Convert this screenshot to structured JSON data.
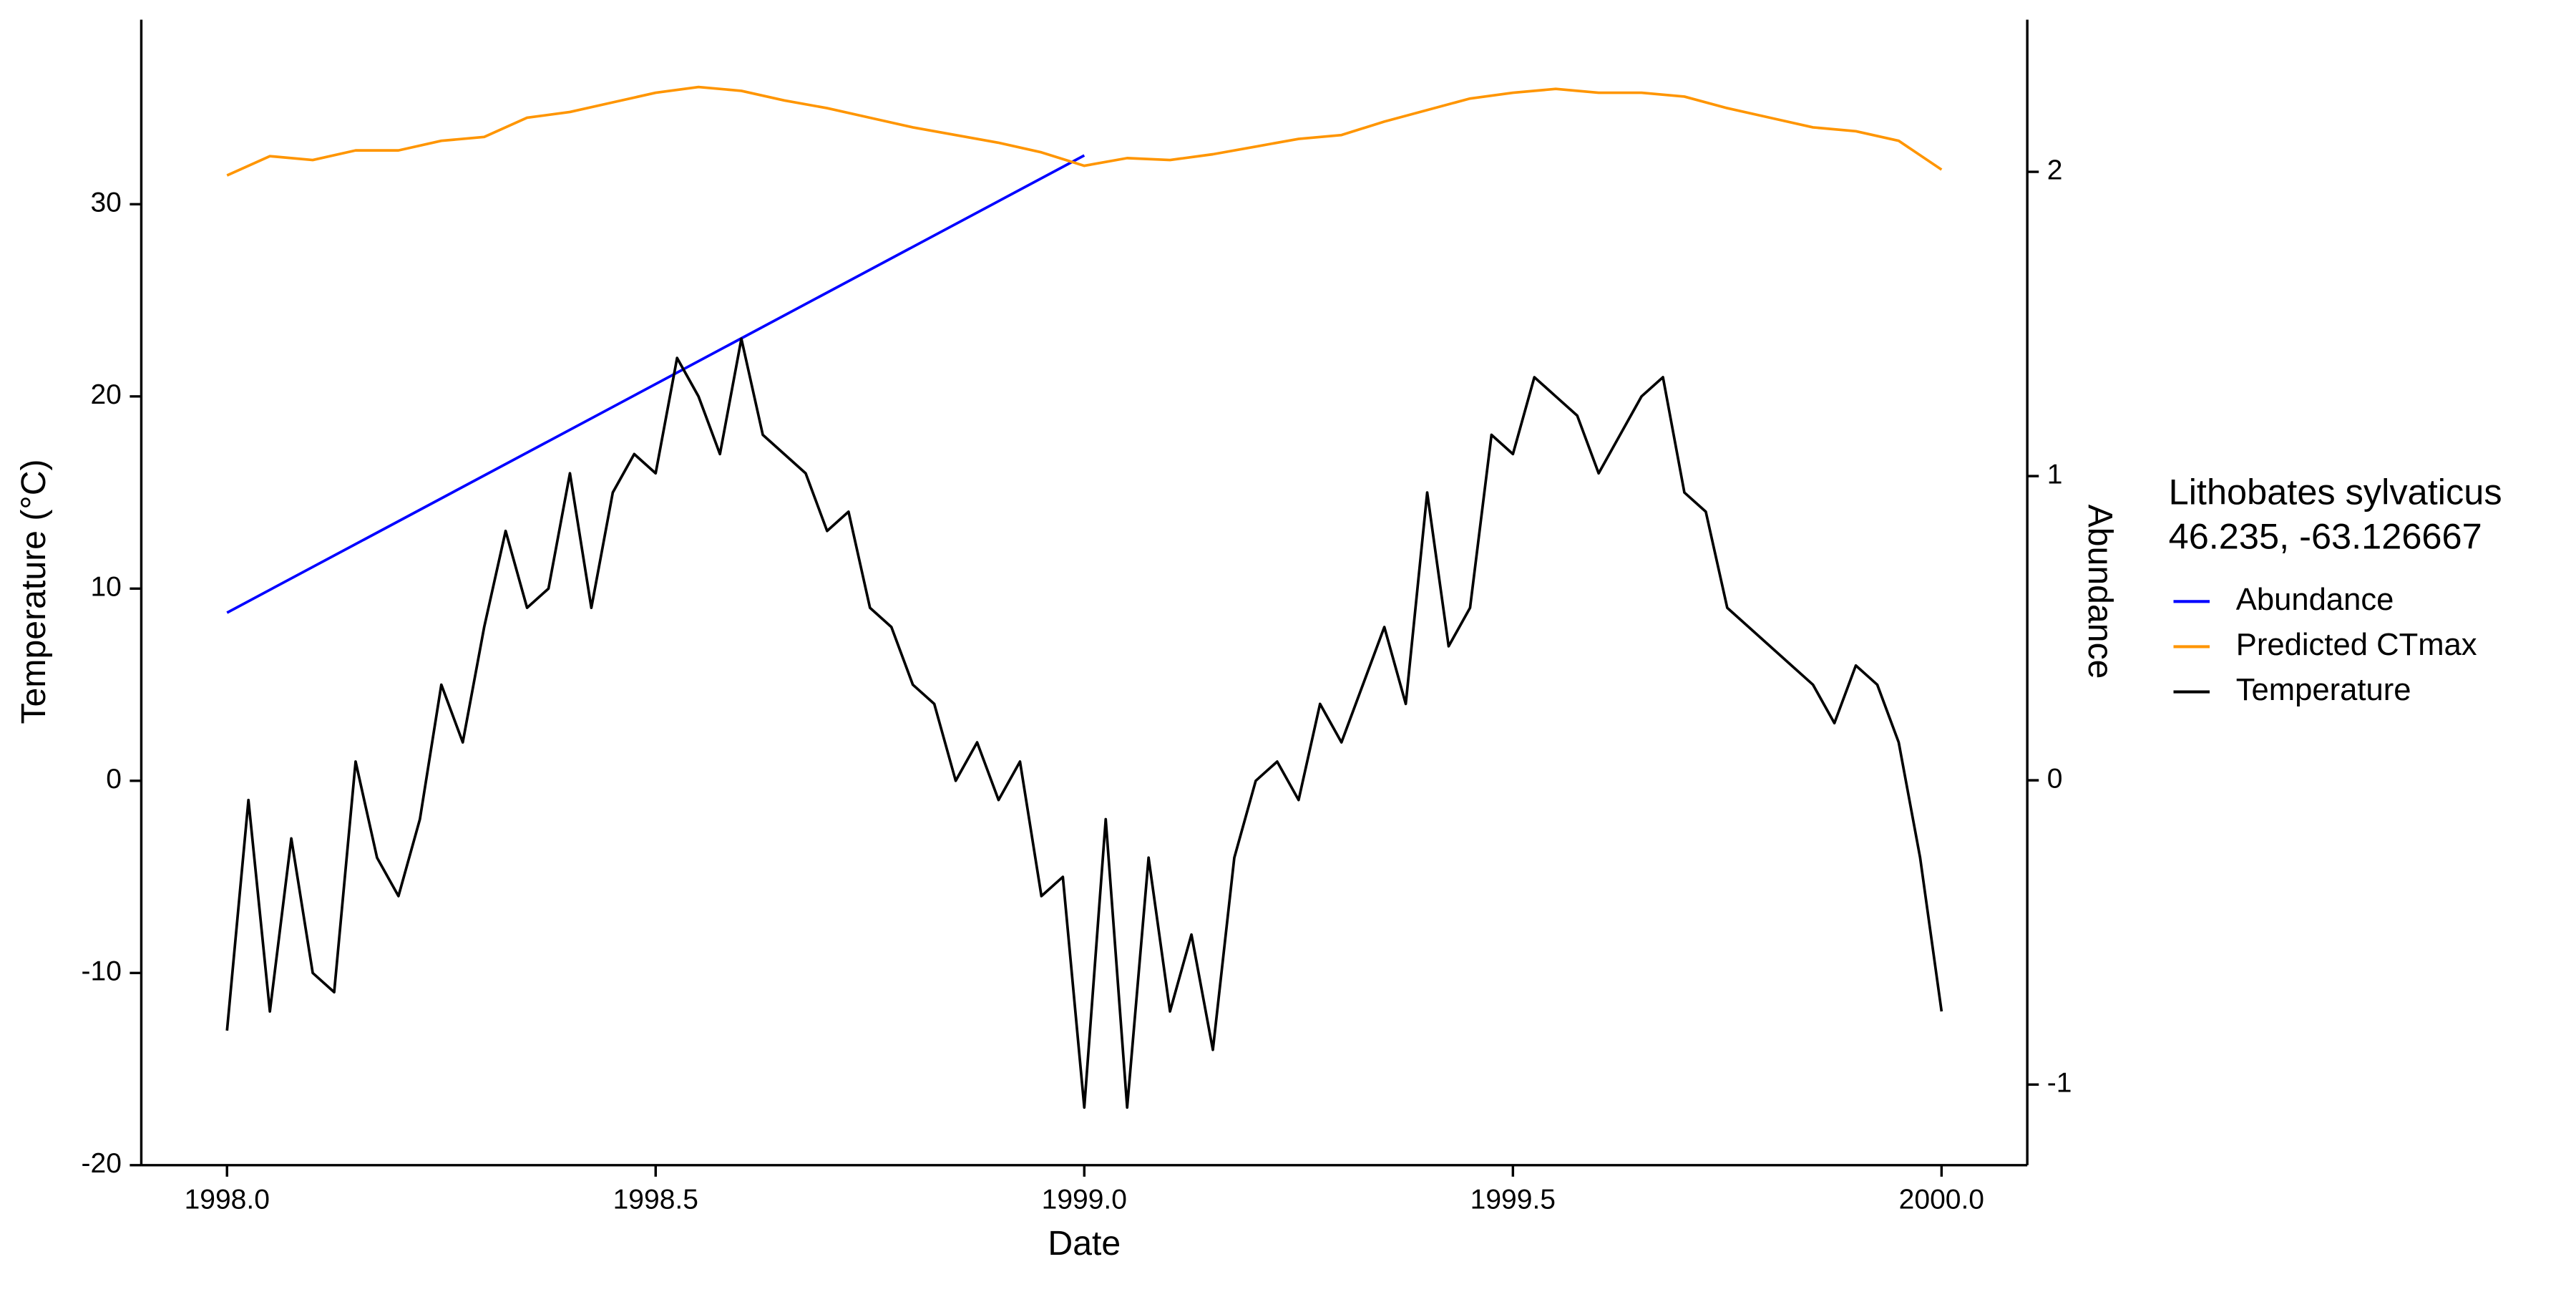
{
  "chart_data": {
    "type": "line",
    "xlabel": "Date",
    "ylabel": "Temperature (°C)",
    "y2label": "Abundance",
    "legend_title": [
      "Lithobates sylvaticus",
      "46.235, -63.126667"
    ],
    "legend": "right",
    "grid": false,
    "xlim": [
      1997.9,
      2000.1
    ],
    "xticks": [
      {
        "value": 1998,
        "label": "1998.0"
      },
      {
        "value": 1998.5,
        "label": "1998.5"
      },
      {
        "value": 1999,
        "label": "1999.0"
      },
      {
        "value": 1999.5,
        "label": "1999.5"
      },
      {
        "value": 2000,
        "label": "2000.0"
      }
    ],
    "ylim": [
      -20,
      39.6
    ],
    "yticks": [
      -20,
      -10,
      0,
      10,
      20,
      30
    ],
    "y2lim": [
      -1.265,
      2.5
    ],
    "y2ticks": [
      -1,
      0,
      1,
      2
    ],
    "y2color": "#0000ff",
    "series": [
      {
        "name": "Abundance",
        "color": "#0000ff",
        "axis": "y2",
        "x": [
          1998,
          1999
        ],
        "values": [
          0.551,
          2.054
        ]
      },
      {
        "name": "Predicted CTmax",
        "color": "#ff9500",
        "axis": "y",
        "x": [
          1998,
          1998.05,
          1998.1,
          1998.15,
          1998.2,
          1998.25,
          1998.3,
          1998.35,
          1998.4,
          1998.45,
          1998.5,
          1998.55,
          1998.6,
          1998.65,
          1998.7,
          1998.75,
          1998.8,
          1998.85,
          1998.9,
          1998.95,
          1999,
          1999.05,
          1999.1,
          1999.15,
          1999.2,
          1999.25,
          1999.3,
          1999.35,
          1999.4,
          1999.45,
          1999.5,
          1999.55,
          1999.6,
          1999.65,
          1999.7,
          1999.75,
          1999.8,
          1999.85,
          1999.9,
          1999.95,
          2000
        ],
        "values": [
          31.5,
          32.5,
          32.3,
          32.8,
          32.8,
          33.3,
          33.5,
          34.5,
          34.8,
          35.3,
          35.8,
          36.1,
          35.9,
          35.4,
          35.0,
          34.5,
          34.0,
          33.6,
          33.2,
          32.7,
          32.0,
          32.4,
          32.3,
          32.6,
          33.0,
          33.4,
          33.6,
          34.3,
          34.9,
          35.5,
          35.8,
          36.0,
          35.8,
          35.8,
          35.6,
          35.0,
          34.5,
          34.0,
          33.8,
          33.3,
          31.8
        ]
      },
      {
        "name": "Temperature",
        "color": "#000000",
        "axis": "y",
        "x": [
          1998,
          1998.025,
          1998.05,
          1998.075,
          1998.1,
          1998.125,
          1998.15,
          1998.175,
          1998.2,
          1998.225,
          1998.25,
          1998.275,
          1998.3,
          1998.325,
          1998.35,
          1998.375,
          1998.4,
          1998.425,
          1998.45,
          1998.475,
          1998.5,
          1998.525,
          1998.55,
          1998.575,
          1998.6,
          1998.625,
          1998.65,
          1998.675,
          1998.7,
          1998.725,
          1998.75,
          1998.775,
          1998.8,
          1998.825,
          1998.85,
          1998.875,
          1998.9,
          1998.925,
          1998.95,
          1998.975,
          1999,
          1999.025,
          1999.05,
          1999.075,
          1999.1,
          1999.125,
          1999.15,
          1999.175,
          1999.2,
          1999.225,
          1999.25,
          1999.275,
          1999.3,
          1999.325,
          1999.35,
          1999.375,
          1999.4,
          1999.425,
          1999.45,
          1999.475,
          1999.5,
          1999.525,
          1999.55,
          1999.575,
          1999.6,
          1999.625,
          1999.65,
          1999.675,
          1999.7,
          1999.725,
          1999.75,
          1999.775,
          1999.8,
          1999.825,
          1999.85,
          1999.875,
          1999.9,
          1999.925,
          1999.95,
          1999.975,
          2000
        ],
        "values": [
          -13,
          -1,
          -12,
          -3,
          -10,
          -11,
          1,
          -4,
          -6,
          -2,
          5,
          2,
          8,
          13,
          9,
          10,
          16,
          9,
          15,
          17,
          16,
          22,
          20,
          17,
          23,
          18,
          17,
          16,
          13,
          14,
          9,
          8,
          5,
          4,
          0,
          2,
          -1,
          1,
          -6,
          -5,
          -17,
          -2,
          -17,
          -4,
          -12,
          -8,
          -14,
          -4,
          0,
          1,
          -1,
          4,
          2,
          5,
          8,
          4,
          15,
          7,
          9,
          18,
          17,
          21,
          20,
          19,
          16,
          18,
          20,
          21,
          15,
          14,
          9,
          8,
          7,
          6,
          5,
          3,
          6,
          5,
          2,
          -4,
          -12
        ]
      }
    ]
  }
}
